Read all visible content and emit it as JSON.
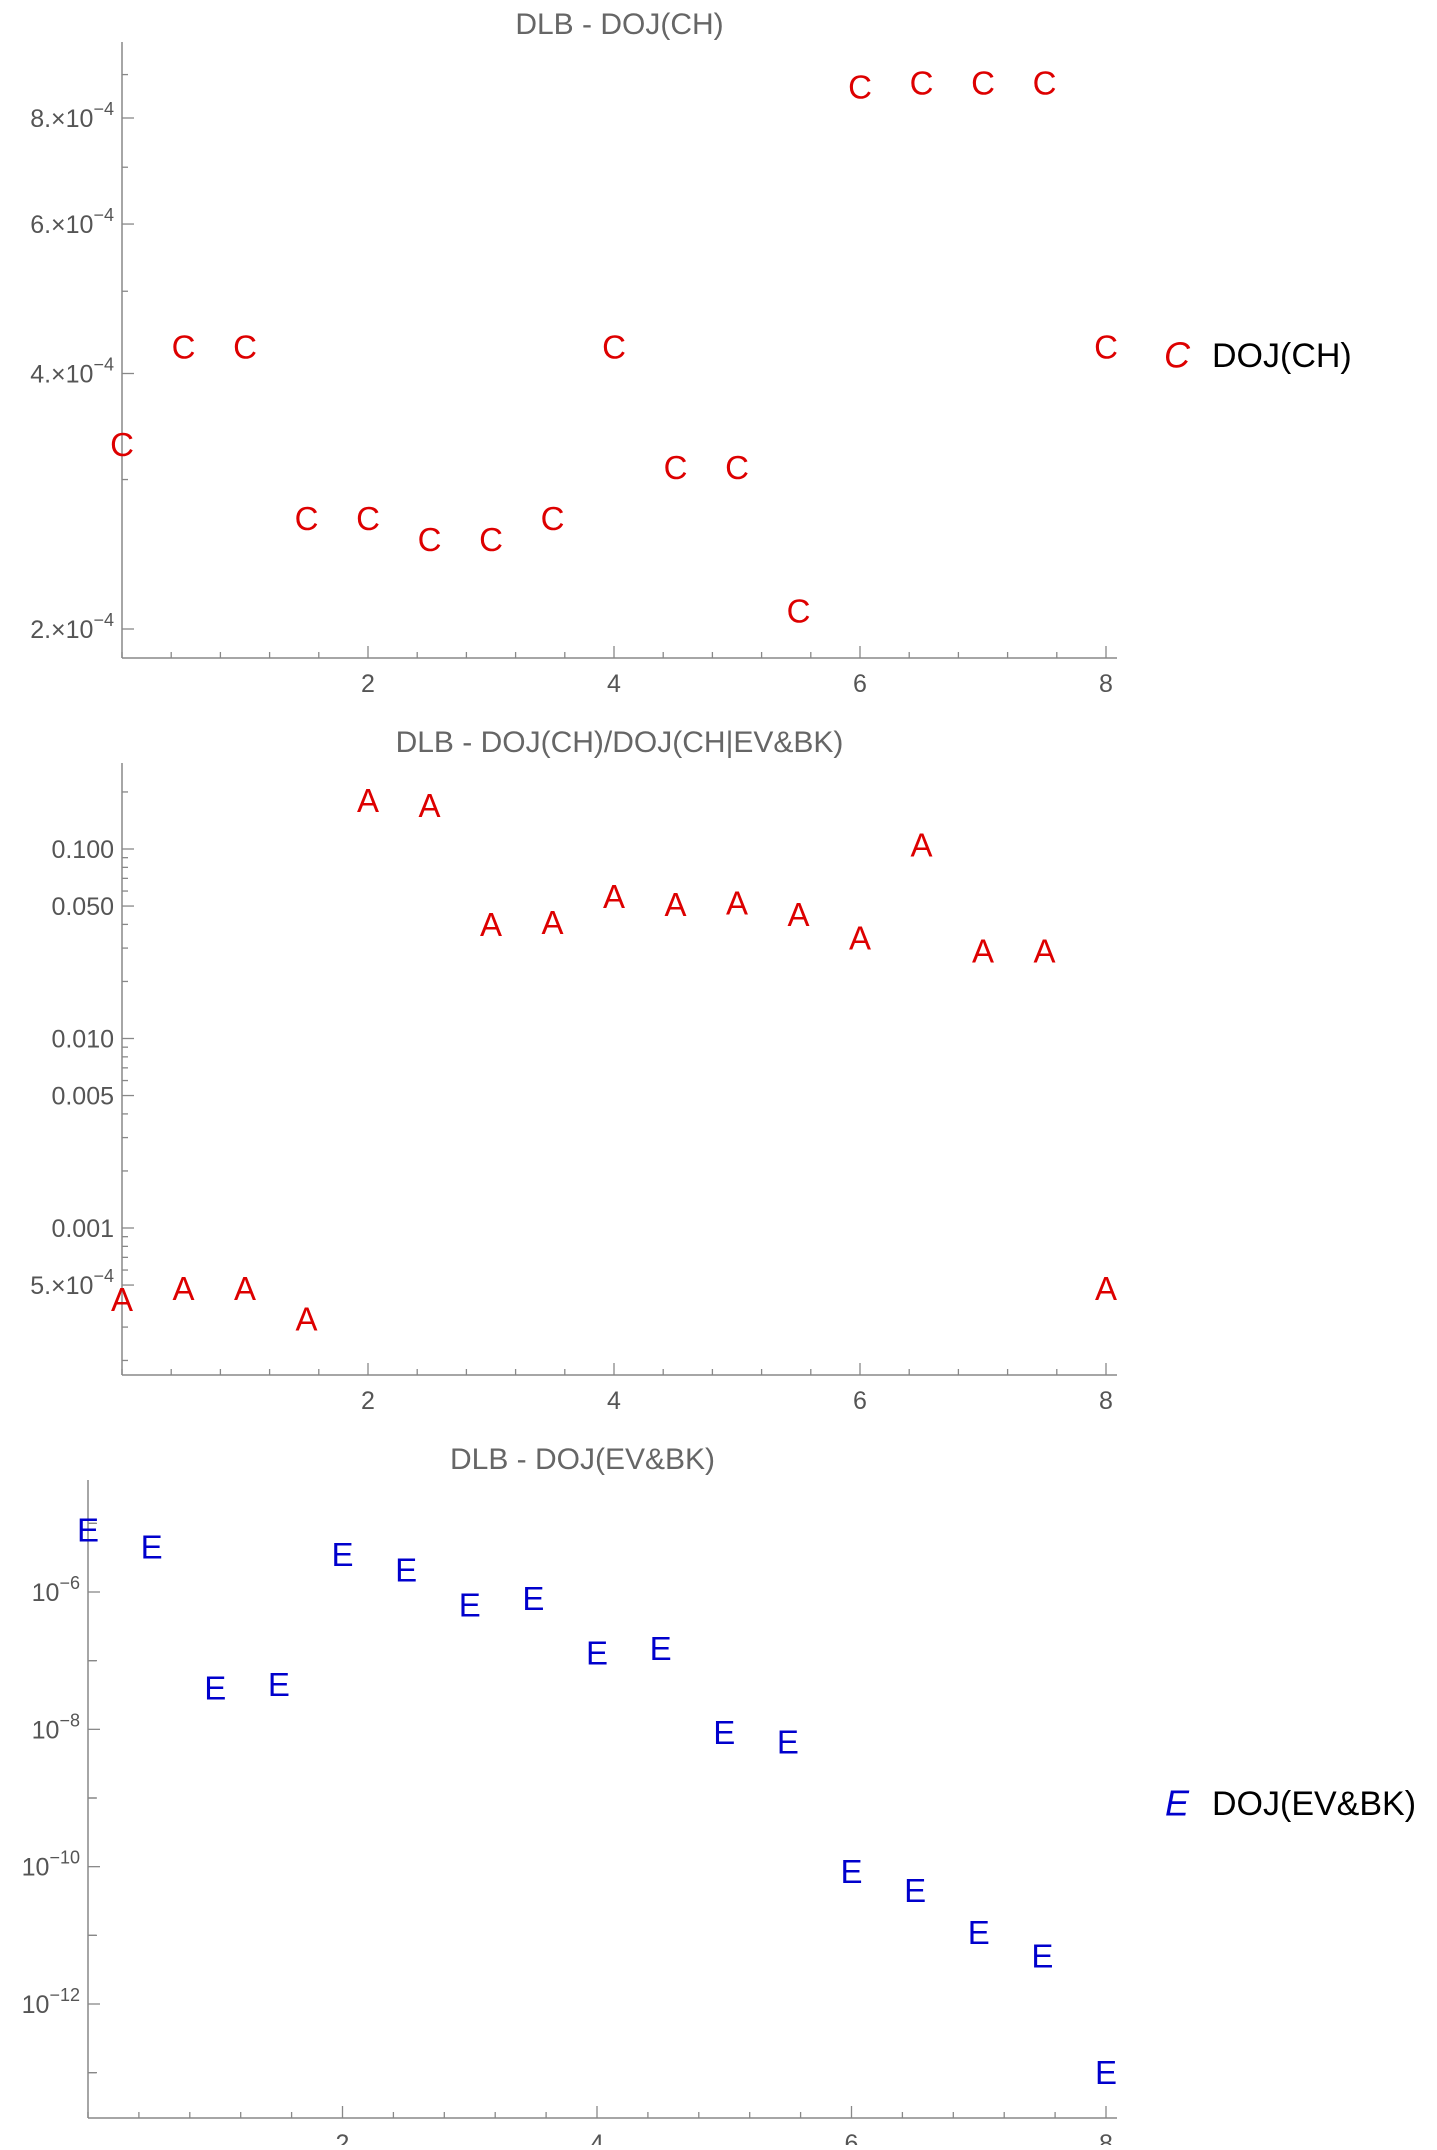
{
  "chart_data": [
    {
      "type": "scatter",
      "title": "DLB - DOJ(CH)",
      "marker_glyph": "C",
      "color": "#dd0000",
      "y_scale": "log",
      "ylim": [
        0.000175,
        0.0011
      ],
      "xlim": [
        0,
        8.1
      ],
      "x_ticks": [
        {
          "v": 2,
          "label": "2"
        },
        {
          "v": 4,
          "label": "4"
        },
        {
          "v": 6,
          "label": "6"
        },
        {
          "v": 8,
          "label": "8"
        }
      ],
      "y_ticks": [
        {
          "v": 0.0002,
          "mant": "2.",
          "exp": "−4"
        },
        {
          "v": 0.0004,
          "mant": "4.",
          "exp": "−4"
        },
        {
          "v": 0.0006,
          "mant": "6.",
          "exp": "−4"
        },
        {
          "v": 0.0008,
          "mant": "8.",
          "exp": "−4"
        }
      ],
      "legend": {
        "glyph": "C",
        "label": "DOJ(CH)"
      },
      "series": [
        {
          "name": "DOJ(CH)",
          "x": [
            0,
            0.5,
            1,
            1.5,
            2,
            2.5,
            3,
            3.5,
            4,
            4.5,
            5,
            5.5,
            6,
            6.5,
            7,
            7.5,
            8
          ],
          "y": [
            0.00033,
            0.00043,
            0.00043,
            0.00027,
            0.00027,
            0.000255,
            0.000255,
            0.00027,
            0.00043,
            0.00031,
            0.00031,
            0.00021,
            0.00087,
            0.00088,
            0.00088,
            0.00088,
            0.00043
          ]
        }
      ]
    },
    {
      "type": "scatter",
      "title": "DLB - DOJ(CH)/DOJ(CH|EV&BK)",
      "marker_glyph": "A",
      "color": "#dd0000",
      "y_scale": "log",
      "ylim": [
        0.00017,
        0.4
      ],
      "xlim": [
        0,
        8.1
      ],
      "x_ticks": [
        {
          "v": 2,
          "label": "2"
        },
        {
          "v": 4,
          "label": "4"
        },
        {
          "v": 6,
          "label": "6"
        },
        {
          "v": 8,
          "label": "8"
        }
      ],
      "y_ticks": [
        {
          "v": 0.1,
          "label": "0.100"
        },
        {
          "v": 0.05,
          "label": "0.050"
        },
        {
          "v": 0.01,
          "label": "0.010"
        },
        {
          "v": 0.005,
          "label": "0.005"
        },
        {
          "v": 0.001,
          "label": "0.001"
        },
        {
          "v": 0.0005,
          "mant": "5.",
          "exp": "−4"
        }
      ],
      "series": [
        {
          "name": "DOJ(CH)/DOJ(CH|EV&BK)",
          "x": [
            0,
            0.5,
            1,
            1.5,
            2,
            2.5,
            3,
            3.5,
            4,
            4.5,
            5,
            5.5,
            6,
            6.5,
            7,
            7.5,
            8
          ],
          "y": [
            0.00042,
            0.00048,
            0.00048,
            0.00033,
            0.18,
            0.17,
            0.04,
            0.041,
            0.056,
            0.051,
            0.052,
            0.045,
            0.034,
            0.105,
            0.029,
            0.029,
            0.00048
          ]
        }
      ]
    },
    {
      "type": "scatter",
      "title": "DLB - DOJ(EV&BK)",
      "marker_glyph": "E",
      "color": "#0000cc",
      "y_scale": "log",
      "ylim": [
        4e-14,
        1.5e-05
      ],
      "xlim": [
        0,
        8.1
      ],
      "x_ticks": [
        {
          "v": 2,
          "label": "2"
        },
        {
          "v": 4,
          "label": "4"
        },
        {
          "v": 6,
          "label": "6"
        },
        {
          "v": 8,
          "label": "8"
        }
      ],
      "y_ticks": [
        {
          "v": 1e-06,
          "mant": "10",
          "exp": "−6"
        },
        {
          "v": 1e-08,
          "mant": "10",
          "exp": "−8"
        },
        {
          "v": 1e-10,
          "mant": "10",
          "exp": "−10"
        },
        {
          "v": 1e-12,
          "mant": "10",
          "exp": "−12"
        }
      ],
      "legend": {
        "glyph": "E",
        "label": "DOJ(EV&BK)"
      },
      "series": [
        {
          "name": "DOJ(EV&BK)",
          "x": [
            0,
            0.5,
            1,
            1.5,
            2,
            2.5,
            3,
            3.5,
            4,
            4.5,
            5,
            5.5,
            6,
            6.5,
            7,
            7.5,
            8
          ],
          "y": [
            8e-06,
            4.5e-06,
            4e-08,
            4.5e-08,
            3.5e-06,
            2.1e-06,
            6.5e-07,
            8e-07,
            1.3e-07,
            1.5e-07,
            9e-09,
            6.5e-09,
            8.5e-11,
            4.5e-11,
            1.1e-11,
            5e-12,
            1e-13
          ]
        }
      ]
    }
  ]
}
